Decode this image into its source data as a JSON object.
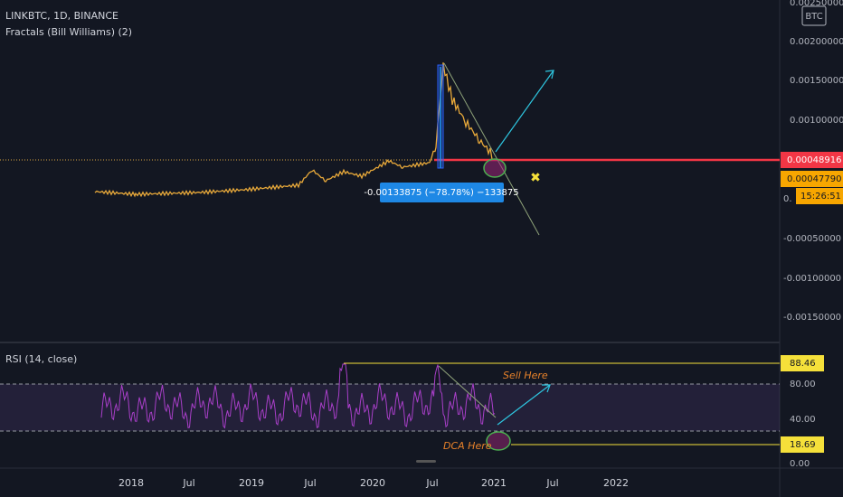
{
  "header": {
    "symbol": "LINKBTC, 1D, BINANCE",
    "indicator": "Fractals (Bill Williams) (2)",
    "currency": "BTC"
  },
  "price_axis": {
    "labels": [
      "0.00250000",
      "0.00200000",
      "0.00150000",
      "0.00100000",
      "0.",
      "-0.00050000",
      "-0.00100000",
      "-0.00150000"
    ]
  },
  "price_tags": {
    "last": "0.00048916",
    "prev": "0.00047790",
    "countdown": "15:26:51"
  },
  "measure": {
    "label": "-0.00133875 (−78.78%) −133875"
  },
  "rsi": {
    "title": "RSI (14, close)",
    "axis": [
      "80.00",
      "40.00",
      "0.00"
    ],
    "tags": [
      "88.46",
      "18.69"
    ],
    "sell": "Sell Here",
    "dca": "DCA Here"
  },
  "time_axis": {
    "labels": [
      "2018",
      "Jul",
      "2019",
      "Jul",
      "2020",
      "Jul",
      "2021",
      "Jul",
      "2022"
    ]
  }
}
